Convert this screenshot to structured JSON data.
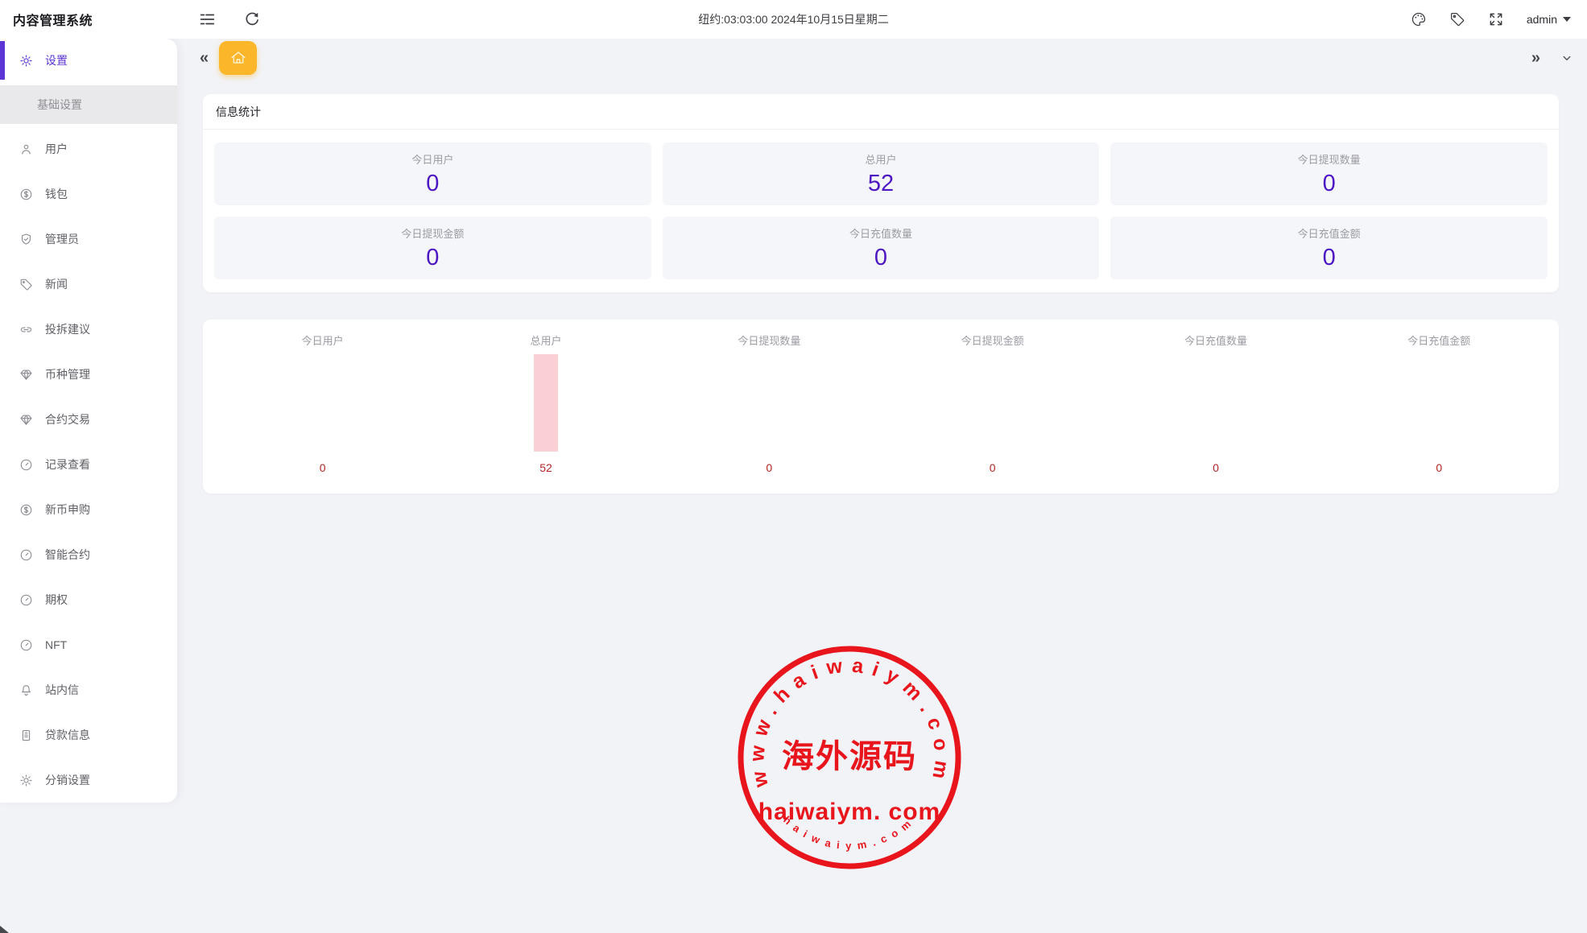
{
  "app": {
    "title": "内容管理系统"
  },
  "colors": {
    "accent_purple": "#5b35d5",
    "stat_value_purple": "#4d17c4",
    "bar_pink": "#fad0d5",
    "chart_value_red": "#b42525",
    "tab_yellow": "#fbb62a",
    "stamp_red": "#e8151c"
  },
  "topbar": {
    "time_text": "纽约:03:03:00 2024年10月15日星期二",
    "user": "admin",
    "left_icons": [
      "menu-fold-icon",
      "refresh-icon"
    ],
    "right_icons": [
      "palette-icon",
      "tag-icon",
      "fullscreen-icon",
      "caret-down-icon"
    ]
  },
  "tabbar": {
    "home_tab_icon": "home-icon",
    "left_icon": "chevrons-left-icon",
    "right_icons": [
      "chevrons-right-icon",
      "chevron-down-icon"
    ]
  },
  "sidebar": {
    "items": [
      {
        "label": "设置",
        "icon": "gear",
        "active": true,
        "children": [
          {
            "label": "基础设置",
            "active": true
          }
        ]
      },
      {
        "label": "用户",
        "icon": "user"
      },
      {
        "label": "钱包",
        "icon": "dollar"
      },
      {
        "label": "管理员",
        "icon": "shield"
      },
      {
        "label": "新闻",
        "icon": "tag"
      },
      {
        "label": "投拆建议",
        "icon": "link"
      },
      {
        "label": "币种管理",
        "icon": "gem"
      },
      {
        "label": "合约交易",
        "icon": "gem"
      },
      {
        "label": "记录查看",
        "icon": "compass"
      },
      {
        "label": "新币申购",
        "icon": "dollar"
      },
      {
        "label": "智能合约",
        "icon": "compass"
      },
      {
        "label": "期权",
        "icon": "compass"
      },
      {
        "label": "NFT",
        "icon": "compass"
      },
      {
        "label": "站内信",
        "icon": "bell"
      },
      {
        "label": "贷款信息",
        "icon": "clipboard"
      },
      {
        "label": "分销设置",
        "icon": "gear"
      }
    ]
  },
  "stats_panel": {
    "title": "信息统计",
    "cards": [
      {
        "label": "今日用户",
        "value": "0"
      },
      {
        "label": "总用户",
        "value": "52"
      },
      {
        "label": "今日提现数量",
        "value": "0"
      },
      {
        "label": "今日提现金额",
        "value": "0"
      },
      {
        "label": "今日充值数量",
        "value": "0"
      },
      {
        "label": "今日充值金额",
        "value": "0"
      }
    ]
  },
  "chart_data": {
    "type": "bar",
    "categories": [
      "今日用户",
      "总用户",
      "今日提现数量",
      "今日提现金额",
      "今日充值数量",
      "今日充值金额"
    ],
    "values": [
      0,
      52,
      0,
      0,
      0,
      0
    ],
    "value_labels": [
      "0",
      "52",
      "0",
      "0",
      "0",
      "0"
    ],
    "title": "",
    "xlabel": "",
    "ylabel": "",
    "ylim": [
      0,
      52
    ],
    "bar_color": "#fad0d5",
    "value_label_color": "#b42525",
    "grid": false,
    "legend": "none"
  },
  "watermark": {
    "top_text": "www.haiwaiym.com",
    "center_text": "海外源码",
    "line_text": "haiwaiym. com",
    "bottom_text": "haiwaiym.com"
  }
}
